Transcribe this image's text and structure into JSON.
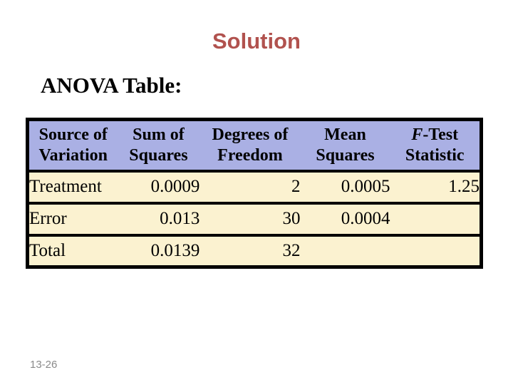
{
  "slide": {
    "title": "Solution",
    "heading": "ANOVA Table:",
    "page_number": "13-26"
  },
  "colors": {
    "title_text": "#b1524e",
    "table_header_bg": "#aab0e4",
    "table_body_bg": "#fbf2d0",
    "table_border": "#000000",
    "page_number_text": "#8a8a8a"
  },
  "table": {
    "columns": [
      {
        "line1": "Source of",
        "line2": "Variation"
      },
      {
        "line1": "Sum of",
        "line2": "Squares"
      },
      {
        "line1": "Degrees of",
        "line2": "Freedom"
      },
      {
        "line1": "Mean",
        "line2": "Squares"
      },
      {
        "line1_italic": "F",
        "line1_rest": "-Test",
        "line2": "Statistic"
      }
    ],
    "rows": [
      {
        "source": "Treatment",
        "sum_of_squares": "0.0009",
        "degrees_of_freedom": "2",
        "mean_squares": "0.0005",
        "f_statistic": "1.25"
      },
      {
        "source": "Error",
        "sum_of_squares": "0.013",
        "degrees_of_freedom": "30",
        "mean_squares": "0.0004",
        "f_statistic": ""
      },
      {
        "source": "Total",
        "sum_of_squares": "0.0139",
        "degrees_of_freedom": "32",
        "mean_squares": "",
        "f_statistic": ""
      }
    ]
  }
}
